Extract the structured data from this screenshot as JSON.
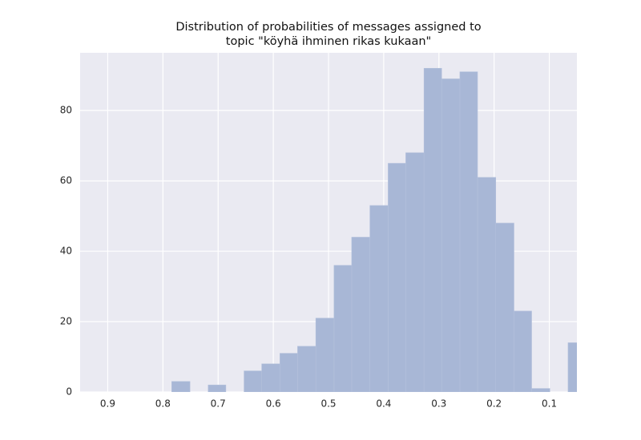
{
  "chart_data": {
    "type": "histogram",
    "title": [
      "Distribution of probabilities of messages assigned to",
      "topic \"köyhä ihminen rikas kukaan\""
    ],
    "bins": [
      0.034,
      0.066,
      0.099,
      0.132,
      0.164,
      0.197,
      0.23,
      0.262,
      0.295,
      0.327,
      0.36,
      0.392,
      0.425,
      0.458,
      0.49,
      0.523,
      0.556,
      0.588,
      0.621,
      0.653,
      0.686,
      0.718,
      0.751,
      0.784
    ],
    "values": [
      14,
      0,
      1,
      23,
      48,
      61,
      91,
      89,
      92,
      68,
      65,
      53,
      44,
      36,
      21,
      13,
      11,
      8,
      6,
      0,
      2,
      0,
      3
    ],
    "color": "#a8b7d6",
    "xlim": [
      0.95,
      0.05
    ],
    "xticks": [
      0.9,
      0.8,
      0.7,
      0.6,
      0.5,
      0.4,
      0.3,
      0.2,
      0.1
    ],
    "ylim": [
      0,
      96.4
    ],
    "yticks": [
      0,
      20,
      40,
      60,
      80
    ],
    "grid": true
  }
}
